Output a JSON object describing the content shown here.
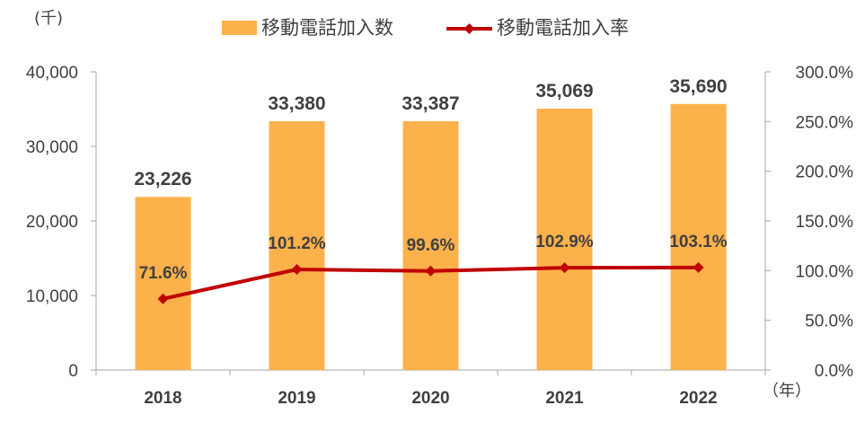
{
  "chart_data": {
    "type": "bar",
    "categories": [
      "2018",
      "2019",
      "2020",
      "2021",
      "2022"
    ],
    "series": [
      {
        "name": "移動電話加入数",
        "type": "bar",
        "axis": "left",
        "values": [
          23226,
          33380,
          33387,
          35069,
          35690
        ],
        "labels": [
          "23,226",
          "33,380",
          "33,387",
          "35,069",
          "35,690"
        ],
        "color": "#fdb14b"
      },
      {
        "name": "移動電話加入率",
        "type": "line",
        "axis": "right",
        "values": [
          71.6,
          101.2,
          99.6,
          102.9,
          103.1
        ],
        "labels": [
          "71.6%",
          "101.2%",
          "99.6%",
          "102.9%",
          "103.1%"
        ],
        "color": "#c00000"
      }
    ],
    "y_left": {
      "unit": "(千)",
      "ylim": [
        0,
        40000
      ],
      "ticks": [
        0,
        10000,
        20000,
        30000,
        40000
      ],
      "tick_labels": [
        "0",
        "10,000",
        "20,000",
        "30,000",
        "40,000"
      ]
    },
    "y_right": {
      "ylim": [
        0,
        300
      ],
      "ticks": [
        0,
        50,
        100,
        150,
        200,
        250,
        300
      ],
      "tick_labels": [
        "0.0%",
        "50.0%",
        "100.0%",
        "150.0%",
        "200.0%",
        "250.0%",
        "300.0%"
      ]
    },
    "x_unit": "（年）",
    "legend_position": "top",
    "grid": false
  }
}
